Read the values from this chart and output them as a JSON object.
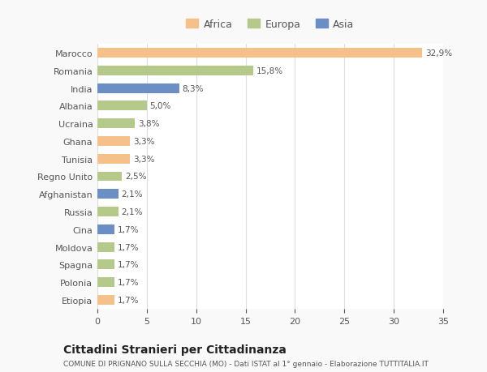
{
  "categories": [
    "Marocco",
    "Romania",
    "India",
    "Albania",
    "Ucraina",
    "Ghana",
    "Tunisia",
    "Regno Unito",
    "Afghanistan",
    "Russia",
    "Cina",
    "Moldova",
    "Spagna",
    "Polonia",
    "Etiopia"
  ],
  "values": [
    32.9,
    15.8,
    8.3,
    5.0,
    3.8,
    3.3,
    3.3,
    2.5,
    2.1,
    2.1,
    1.7,
    1.7,
    1.7,
    1.7,
    1.7
  ],
  "labels": [
    "32,9%",
    "15,8%",
    "8,3%",
    "5,0%",
    "3,8%",
    "3,3%",
    "3,3%",
    "2,5%",
    "2,1%",
    "2,1%",
    "1,7%",
    "1,7%",
    "1,7%",
    "1,7%",
    "1,7%"
  ],
  "colors": [
    "#f5c08a",
    "#b5c98a",
    "#6b8ec4",
    "#b5c98a",
    "#b5c98a",
    "#f5c08a",
    "#f5c08a",
    "#b5c98a",
    "#6b8ec4",
    "#b5c98a",
    "#6b8ec4",
    "#b5c98a",
    "#b5c98a",
    "#b5c98a",
    "#f5c08a"
  ],
  "legend_labels": [
    "Africa",
    "Europa",
    "Asia"
  ],
  "legend_colors": [
    "#f5c08a",
    "#b5c98a",
    "#6b8ec4"
  ],
  "title": "Cittadini Stranieri per Cittadinanza",
  "subtitle": "COMUNE DI PRIGNANO SULLA SECCHIA (MO) - Dati ISTAT al 1° gennaio - Elaborazione TUTTITALIA.IT",
  "xlim": [
    0,
    35
  ],
  "xticks": [
    0,
    5,
    10,
    15,
    20,
    25,
    30,
    35
  ],
  "bg_color": "#f9f9f9",
  "bar_bg_color": "#ffffff",
  "grid_color": "#dddddd",
  "text_color": "#555555",
  "title_color": "#222222"
}
